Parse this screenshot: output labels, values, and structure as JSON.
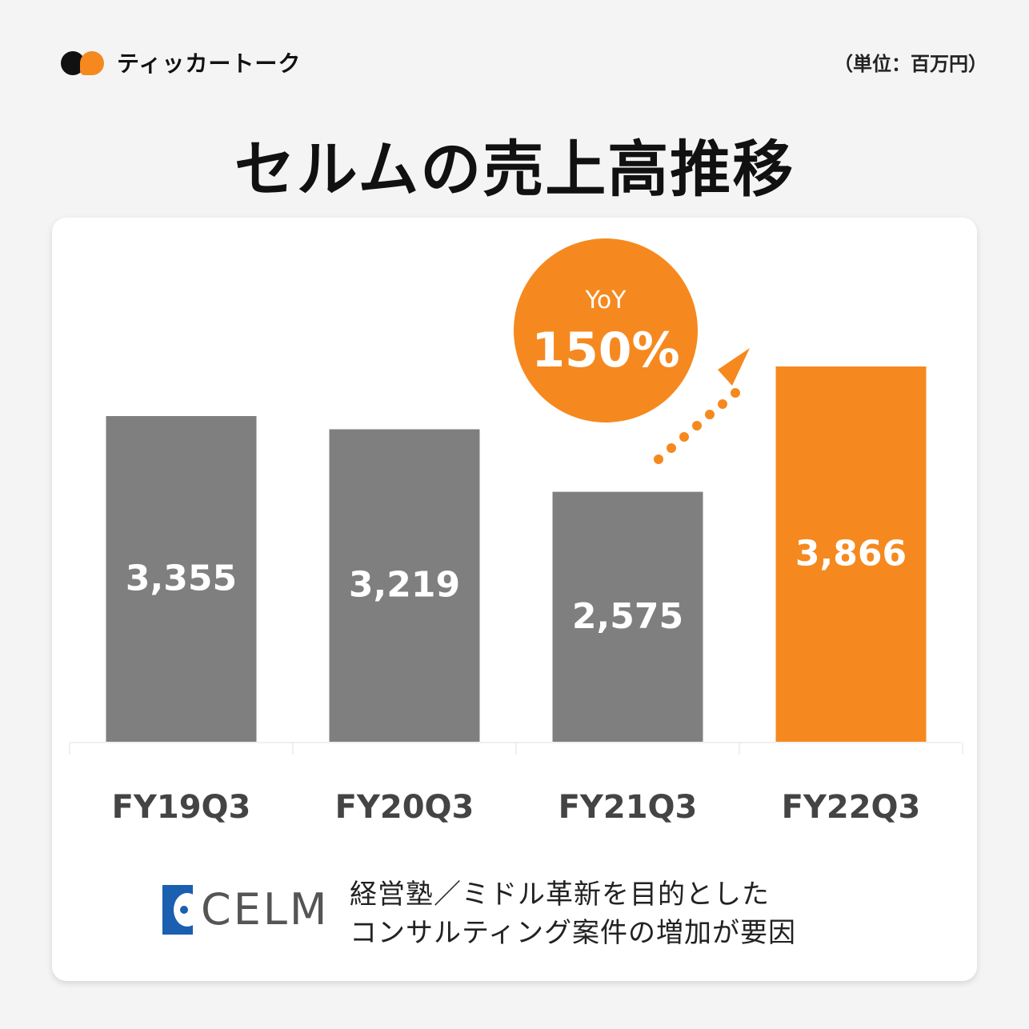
{
  "brand": {
    "name": "ティッカートーク",
    "logo_icon": "speech-bubbles-icon"
  },
  "unit_label": "（単位：百万円）",
  "title": "セルムの売上高推移",
  "chart_data": {
    "type": "bar",
    "categories": [
      "FY19Q3",
      "FY20Q3",
      "FY21Q3",
      "FY22Q3"
    ],
    "values": [
      3355,
      3219,
      2575,
      3866
    ],
    "value_labels": [
      "3,355",
      "3,219",
      "2,575",
      "3,866"
    ],
    "ylim": [
      0,
      3866
    ],
    "colors": [
      "#7f7f7f",
      "#7f7f7f",
      "#7f7f7f",
      "#f5891f"
    ],
    "annotation": {
      "label": "YoY",
      "value": "150%",
      "color": "#f5891f"
    }
  },
  "footer": {
    "company_logo": "CELM",
    "note_lines": [
      "経営塾／ミドル革新を目的とした",
      "コンサルティング案件の増加が要因"
    ]
  }
}
